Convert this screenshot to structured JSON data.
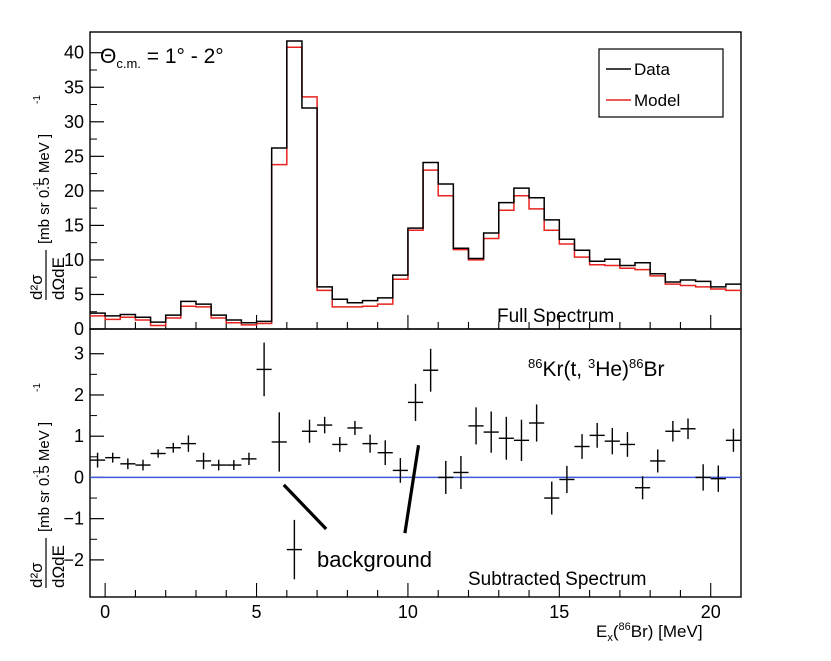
{
  "chart_data": [
    {
      "type": "step",
      "panel": "top",
      "title": "Θc.m. = 1° - 2°",
      "title_parts": {
        "theta": "Θ",
        "sub": "c.m.",
        "rest": " = 1° - 2°"
      },
      "label": "Full Spectrum",
      "ylabel": "d²σ / dΩdE  [mb sr⁻¹ 0.5 MeV⁻¹]",
      "ylabel_parts": {
        "frac_top": "d²σ",
        "frac_bottom": "dΩdE",
        "units": "[mb sr  0.5 MeV  ]",
        "sup": "-1"
      },
      "xlim": [
        -0.5,
        21
      ],
      "ylim": [
        0,
        43
      ],
      "yticks": [
        0,
        5,
        10,
        15,
        20,
        25,
        30,
        35,
        40
      ],
      "bin_edges": [
        -0.5,
        0,
        0.5,
        1,
        1.5,
        2,
        2.5,
        3,
        3.5,
        4,
        4.5,
        5,
        5.5,
        6,
        6.5,
        7,
        7.5,
        8,
        8.5,
        9,
        9.5,
        10,
        10.5,
        11,
        11.5,
        12,
        12.5,
        13,
        13.5,
        14,
        14.5,
        15,
        15.5,
        16,
        16.5,
        17,
        17.5,
        18,
        18.5,
        19,
        19.5,
        20,
        20.5,
        21
      ],
      "series": [
        {
          "name": "Data",
          "color": "#000000",
          "values": [
            2.3,
            1.9,
            2.1,
            1.7,
            1.0,
            2.0,
            4.0,
            3.6,
            2.0,
            1.3,
            0.9,
            1.1,
            26.2,
            41.7,
            32.0,
            6.1,
            4.3,
            3.8,
            4.1,
            4.5,
            7.8,
            14.6,
            24.1,
            21.0,
            11.7,
            10.2,
            13.9,
            18.3,
            20.4,
            19.0,
            15.8,
            13.0,
            11.4,
            9.8,
            10.1,
            9.2,
            9.6,
            8.0,
            6.8,
            7.1,
            6.9,
            6.1,
            6.5
          ]
        },
        {
          "name": "Model",
          "color": "#e8231f",
          "values": [
            1.9,
            1.4,
            1.7,
            1.3,
            0.5,
            1.6,
            3.3,
            3.2,
            1.6,
            0.9,
            0.6,
            0.8,
            23.8,
            40.8,
            33.6,
            5.6,
            3.2,
            3.2,
            3.3,
            3.6,
            7.2,
            14.3,
            23.0,
            19.3,
            11.5,
            10.0,
            13.1,
            17.2,
            19.3,
            17.4,
            14.3,
            12.3,
            10.4,
            9.3,
            9.2,
            8.8,
            8.6,
            7.7,
            6.5,
            6.3,
            6.1,
            5.8,
            5.6
          ]
        }
      ],
      "legend": {
        "entries": [
          "Data",
          "Model"
        ],
        "position": "top-right"
      }
    },
    {
      "type": "errorbar",
      "panel": "bottom",
      "label": "Subtracted Spectrum",
      "reaction": "⁸⁶Kr(t, ³He)⁸⁶Br",
      "reaction_parts": {
        "sup1": "86",
        "a": "Kr(t, ",
        "sup2": "3",
        "b": "He)",
        "sup3": "86",
        "c": "Br"
      },
      "xlabel": "Ex(⁸⁶Br) [MeV]",
      "xlabel_parts": {
        "a": "E",
        "sub": "x",
        "b": "(",
        "sup": "86",
        "c": "Br) [MeV]"
      },
      "ylabel": "d²σ / dΩdE  [mb sr⁻¹ 0.5 MeV⁻¹]",
      "xlim": [
        -0.5,
        21
      ],
      "ylim": [
        -2.9,
        3.6
      ],
      "yticks": [
        -2,
        -1,
        0,
        1,
        2,
        3
      ],
      "xticks": [
        0,
        5,
        10,
        15,
        20
      ],
      "xtick_labels": [
        "0",
        "5",
        "10",
        "15",
        "20"
      ],
      "zero_line_color": "#3d5bd9",
      "points": [
        {
          "x": -0.25,
          "y": 0.42,
          "err": 0.18
        },
        {
          "x": 0.25,
          "y": 0.48,
          "err": 0.12
        },
        {
          "x": 0.75,
          "y": 0.33,
          "err": 0.13
        },
        {
          "x": 1.25,
          "y": 0.3,
          "err": 0.13
        },
        {
          "x": 1.75,
          "y": 0.58,
          "err": 0.1
        },
        {
          "x": 2.25,
          "y": 0.72,
          "err": 0.12
        },
        {
          "x": 2.75,
          "y": 0.82,
          "err": 0.2
        },
        {
          "x": 3.25,
          "y": 0.4,
          "err": 0.2
        },
        {
          "x": 3.75,
          "y": 0.3,
          "err": 0.13
        },
        {
          "x": 4.25,
          "y": 0.3,
          "err": 0.12
        },
        {
          "x": 4.75,
          "y": 0.45,
          "err": 0.15
        },
        {
          "x": 5.25,
          "y": 2.62,
          "err": 0.65
        },
        {
          "x": 5.75,
          "y": 0.86,
          "err": 0.72
        },
        {
          "x": 6.25,
          "y": -1.75,
          "err": 0.72
        },
        {
          "x": 6.75,
          "y": 1.12,
          "err": 0.28
        },
        {
          "x": 7.25,
          "y": 1.27,
          "err": 0.2
        },
        {
          "x": 7.75,
          "y": 0.8,
          "err": 0.18
        },
        {
          "x": 8.25,
          "y": 1.2,
          "err": 0.17
        },
        {
          "x": 8.75,
          "y": 0.82,
          "err": 0.22
        },
        {
          "x": 9.25,
          "y": 0.6,
          "err": 0.3
        },
        {
          "x": 9.75,
          "y": 0.17,
          "err": 0.3
        },
        {
          "x": 10.25,
          "y": 1.82,
          "err": 0.45
        },
        {
          "x": 10.75,
          "y": 2.6,
          "err": 0.52
        },
        {
          "x": 11.25,
          "y": 0.0,
          "err": 0.4
        },
        {
          "x": 11.75,
          "y": 0.12,
          "err": 0.4
        },
        {
          "x": 12.25,
          "y": 1.25,
          "err": 0.45
        },
        {
          "x": 12.75,
          "y": 1.1,
          "err": 0.5
        },
        {
          "x": 13.25,
          "y": 0.95,
          "err": 0.52
        },
        {
          "x": 13.75,
          "y": 0.9,
          "err": 0.5
        },
        {
          "x": 14.25,
          "y": 1.32,
          "err": 0.45
        },
        {
          "x": 14.75,
          "y": -0.5,
          "err": 0.4
        },
        {
          "x": 15.25,
          "y": -0.05,
          "err": 0.33
        },
        {
          "x": 15.75,
          "y": 0.75,
          "err": 0.3
        },
        {
          "x": 16.25,
          "y": 1.02,
          "err": 0.3
        },
        {
          "x": 16.75,
          "y": 0.88,
          "err": 0.32
        },
        {
          "x": 17.25,
          "y": 0.8,
          "err": 0.3
        },
        {
          "x": 17.75,
          "y": -0.25,
          "err": 0.28
        },
        {
          "x": 18.25,
          "y": 0.4,
          "err": 0.28
        },
        {
          "x": 18.75,
          "y": 1.12,
          "err": 0.25
        },
        {
          "x": 19.25,
          "y": 1.18,
          "err": 0.25
        },
        {
          "x": 19.75,
          "y": 0.0,
          "err": 0.32
        },
        {
          "x": 20.25,
          "y": -0.03,
          "err": 0.32
        },
        {
          "x": 20.75,
          "y": 0.9,
          "err": 0.28
        }
      ],
      "annotation": {
        "text": "background",
        "arrows": [
          {
            "from": [
              7.3,
              -1.25
            ],
            "to": [
              5.9,
              -0.18
            ]
          },
          {
            "from": [
              9.9,
              -1.35
            ],
            "to": [
              10.35,
              0.78
            ]
          }
        ]
      }
    }
  ]
}
